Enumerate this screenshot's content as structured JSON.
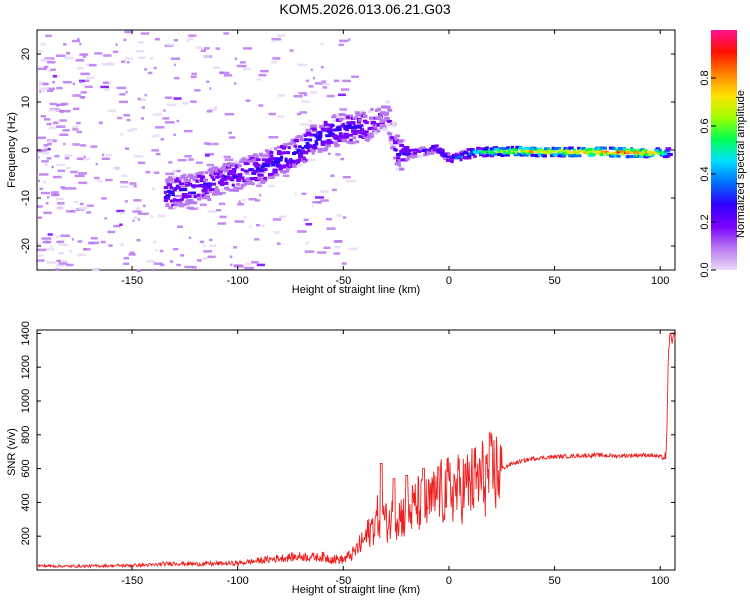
{
  "title": "KOM5.2026.013.06.21.G03",
  "chart_data": [
    {
      "type": "heatmap",
      "name": "spectrogram",
      "xlabel": "Height of straight line (km)",
      "ylabel": "Frequency (Hz)",
      "xlim": [
        -195,
        107
      ],
      "ylim": [
        -25,
        25
      ],
      "xticks": [
        -150,
        -100,
        -50,
        0,
        50,
        100
      ],
      "yticks": [
        -20,
        -10,
        0,
        10,
        20
      ],
      "colorbar": {
        "label": "Normalized spectral amplitude",
        "range": [
          0,
          1
        ],
        "ticks": [
          0.0,
          0.2,
          0.4,
          0.6,
          0.8
        ],
        "colors": [
          "#e8d8f8",
          "#b878f0",
          "#7a00ff",
          "#3000ff",
          "#0070ff",
          "#00e0ff",
          "#00ff50",
          "#a0ff00",
          "#ffe000",
          "#ff8000",
          "#ff1000",
          "#ff1090"
        ]
      },
      "ridge": {
        "description": "dominant frequency track",
        "points": [
          {
            "x": -135,
            "f": -9,
            "amp": 0.3
          },
          {
            "x": -120,
            "f": -8,
            "amp": 0.25
          },
          {
            "x": -100,
            "f": -5,
            "amp": 0.25
          },
          {
            "x": -85,
            "f": -3,
            "amp": 0.3
          },
          {
            "x": -75,
            "f": -1,
            "amp": 0.3
          },
          {
            "x": -65,
            "f": 2,
            "amp": 0.3
          },
          {
            "x": -55,
            "f": 4,
            "amp": 0.3
          },
          {
            "x": -40,
            "f": 5,
            "amp": 0.25
          },
          {
            "x": -30,
            "f": 7,
            "amp": 0.15
          },
          {
            "x": -25,
            "f": -1,
            "amp": 0.25
          },
          {
            "x": -15,
            "f": -0.5,
            "amp": 0.25
          },
          {
            "x": -7,
            "f": 0.5,
            "amp": 0.3
          },
          {
            "x": 0,
            "f": -2,
            "amp": 0.3
          },
          {
            "x": 10,
            "f": -0.5,
            "amp": 0.45
          },
          {
            "x": 20,
            "f": -0.3,
            "amp": 0.6
          },
          {
            "x": 35,
            "f": -0.3,
            "amp": 0.75
          },
          {
            "x": 50,
            "f": -0.4,
            "amp": 0.7
          },
          {
            "x": 65,
            "f": -0.4,
            "amp": 0.8
          },
          {
            "x": 80,
            "f": -0.5,
            "amp": 0.85
          },
          {
            "x": 95,
            "f": -0.6,
            "amp": 0.75
          },
          {
            "x": 104,
            "f": -0.5,
            "amp": 0.5
          }
        ]
      }
    },
    {
      "type": "line",
      "name": "snr",
      "xlabel": "Height of straight line (km)",
      "ylabel": "SNR (v/v)",
      "xlim": [
        -195,
        107
      ],
      "ylim": [
        0,
        1420
      ],
      "xticks": [
        -150,
        -100,
        -50,
        0,
        50,
        100
      ],
      "yticks": [
        200,
        400,
        600,
        800,
        1000,
        1200,
        1400
      ],
      "color": "#ee2020",
      "series": [
        {
          "name": "SNR",
          "x": [
            -195,
            -180,
            -160,
            -140,
            -130,
            -120,
            -100,
            -90,
            -80,
            -70,
            -60,
            -50,
            -45,
            -40,
            -35,
            -32,
            -30,
            -25,
            -20,
            -15,
            -10,
            -5,
            0,
            5,
            10,
            15,
            20,
            25,
            30,
            40,
            50,
            60,
            70,
            80,
            90,
            95,
            100,
            102,
            103,
            104,
            105,
            106
          ],
          "y": [
            25,
            22,
            25,
            30,
            40,
            35,
            40,
            55,
            70,
            80,
            75,
            60,
            100,
            180,
            280,
            350,
            280,
            320,
            330,
            390,
            380,
            450,
            470,
            480,
            510,
            540,
            570,
            600,
            630,
            660,
            670,
            675,
            680,
            675,
            680,
            680,
            670,
            660,
            700,
            1340,
            1380,
            1370
          ]
        }
      ],
      "bursts": [
        {
          "x": -32,
          "y": 630
        },
        {
          "x": -26,
          "y": 540
        },
        {
          "x": -20,
          "y": 560
        },
        {
          "x": -12,
          "y": 600
        },
        {
          "x": -5,
          "y": 610
        }
      ]
    }
  ]
}
